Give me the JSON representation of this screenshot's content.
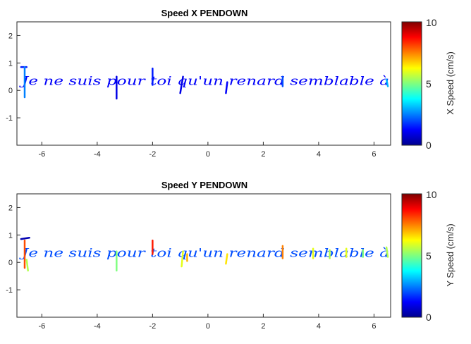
{
  "chart_data": [
    {
      "type": "line",
      "title": "Speed X PENDOWN",
      "xlim": [
        -6.9,
        6.6
      ],
      "ylim": [
        -2,
        2.5
      ],
      "xticks": [
        "-6",
        "-4",
        "-2",
        "0",
        "2",
        "4",
        "6"
      ],
      "yticks": [
        "-1",
        "0",
        "1",
        "2"
      ],
      "text": "Je ne suis pour toi qu'un renard semblable à",
      "colorbar": {
        "label": "X Speed (cm/s)",
        "ticks": [
          "0",
          "5",
          "10"
        ],
        "range": [
          0,
          10
        ],
        "colormap": "jet"
      },
      "dominant_speed": "low"
    },
    {
      "type": "line",
      "title": "Speed Y PENDOWN",
      "xlim": [
        -6.9,
        6.6
      ],
      "ylim": [
        -2,
        2.5
      ],
      "xticks": [
        "-6",
        "-4",
        "-2",
        "0",
        "2",
        "4",
        "6"
      ],
      "yticks": [
        "-1",
        "0",
        "1",
        "2"
      ],
      "text": "Je ne suis pour toi qu'un renard semblable à",
      "colorbar": {
        "label": "Y Speed (cm/s)",
        "ticks": [
          "0",
          "5",
          "10"
        ],
        "range": [
          0,
          10
        ],
        "colormap": "jet"
      },
      "dominant_speed": "mixed"
    }
  ]
}
